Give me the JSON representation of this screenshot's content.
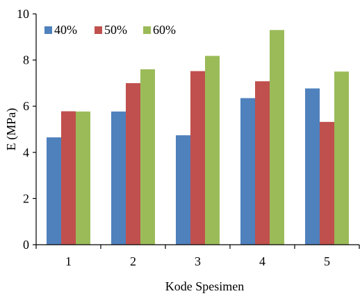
{
  "chart_data": {
    "type": "bar",
    "title": "",
    "xlabel": "Kode Spesimen",
    "ylabel": "E (MPa)",
    "categories": [
      "1",
      "2",
      "3",
      "4",
      "5"
    ],
    "ylim": [
      0,
      10
    ],
    "yticks": [
      0,
      2,
      4,
      6,
      8,
      10
    ],
    "grid": false,
    "legend_position": "top-left",
    "series": [
      {
        "name": "40%",
        "color": "#4F81BD",
        "values": [
          4.65,
          5.77,
          4.74,
          6.35,
          6.77
        ]
      },
      {
        "name": "50%",
        "color": "#C0504D",
        "values": [
          5.78,
          7.0,
          7.52,
          7.08,
          5.32
        ]
      },
      {
        "name": "60%",
        "color": "#9BBB59",
        "values": [
          5.77,
          7.6,
          8.18,
          9.3,
          7.5
        ]
      }
    ]
  }
}
